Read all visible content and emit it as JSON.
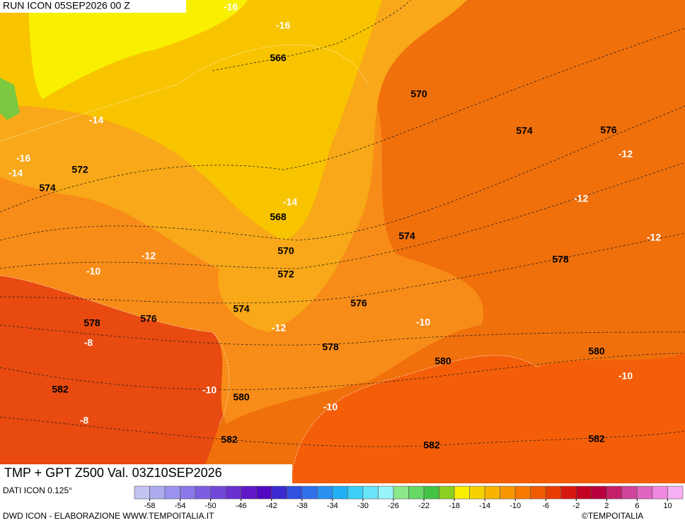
{
  "header": {
    "run": "RUN ICON 05SEP2026 00 Z"
  },
  "map": {
    "title": "TMP + GPT Z500 Val. 03Z10SEP2026",
    "height_labels": [
      "566",
      "570",
      "574",
      "576",
      "572",
      "574",
      "568",
      "574",
      "570",
      "578",
      "572",
      "574",
      "576",
      "578",
      "576",
      "578",
      "580",
      "580",
      "582",
      "580",
      "582",
      "582",
      "582"
    ],
    "temperature_labels": [
      "-16",
      "-16",
      "-14",
      "-12",
      "-16",
      "-14",
      "-14",
      "-12",
      "-12",
      "-12",
      "-10",
      "-12",
      "-10",
      "-8",
      "-10",
      "-10",
      "-10",
      "-8"
    ]
  },
  "legend": {
    "source": "DATI ICON 0.125°",
    "range": [
      -60,
      12
    ],
    "ticks": [
      -58,
      -54,
      -50,
      -46,
      -42,
      -38,
      -34,
      -30,
      -26,
      -22,
      -18,
      -14,
      -10,
      -6,
      -2,
      2,
      6,
      10
    ],
    "colors": [
      "#c4c4f2",
      "#ababee",
      "#9a92ee",
      "#8a78e8",
      "#7c5ee0",
      "#7248da",
      "#6a30d0",
      "#6018c8",
      "#5208c0",
      "#3a2ad0",
      "#3050e0",
      "#3070ea",
      "#2a90f0",
      "#22b0f4",
      "#3cd0f8",
      "#6ae4f8",
      "#98f6f8",
      "#8ae88a",
      "#66d866",
      "#44c444",
      "#8ad020",
      "#f8f000",
      "#f8d200",
      "#f8b400",
      "#f89600",
      "#f87800",
      "#f05a00",
      "#e83c00",
      "#d81810",
      "#c40020",
      "#b80040",
      "#c42068",
      "#d0449c",
      "#e064c0",
      "#f088e0",
      "#f8b0f4"
    ],
    "footer": "DWD ICON - ELABORAZIONE WWW.TEMPOITALIA.IT",
    "credit": "©TEMPOITALIA"
  }
}
